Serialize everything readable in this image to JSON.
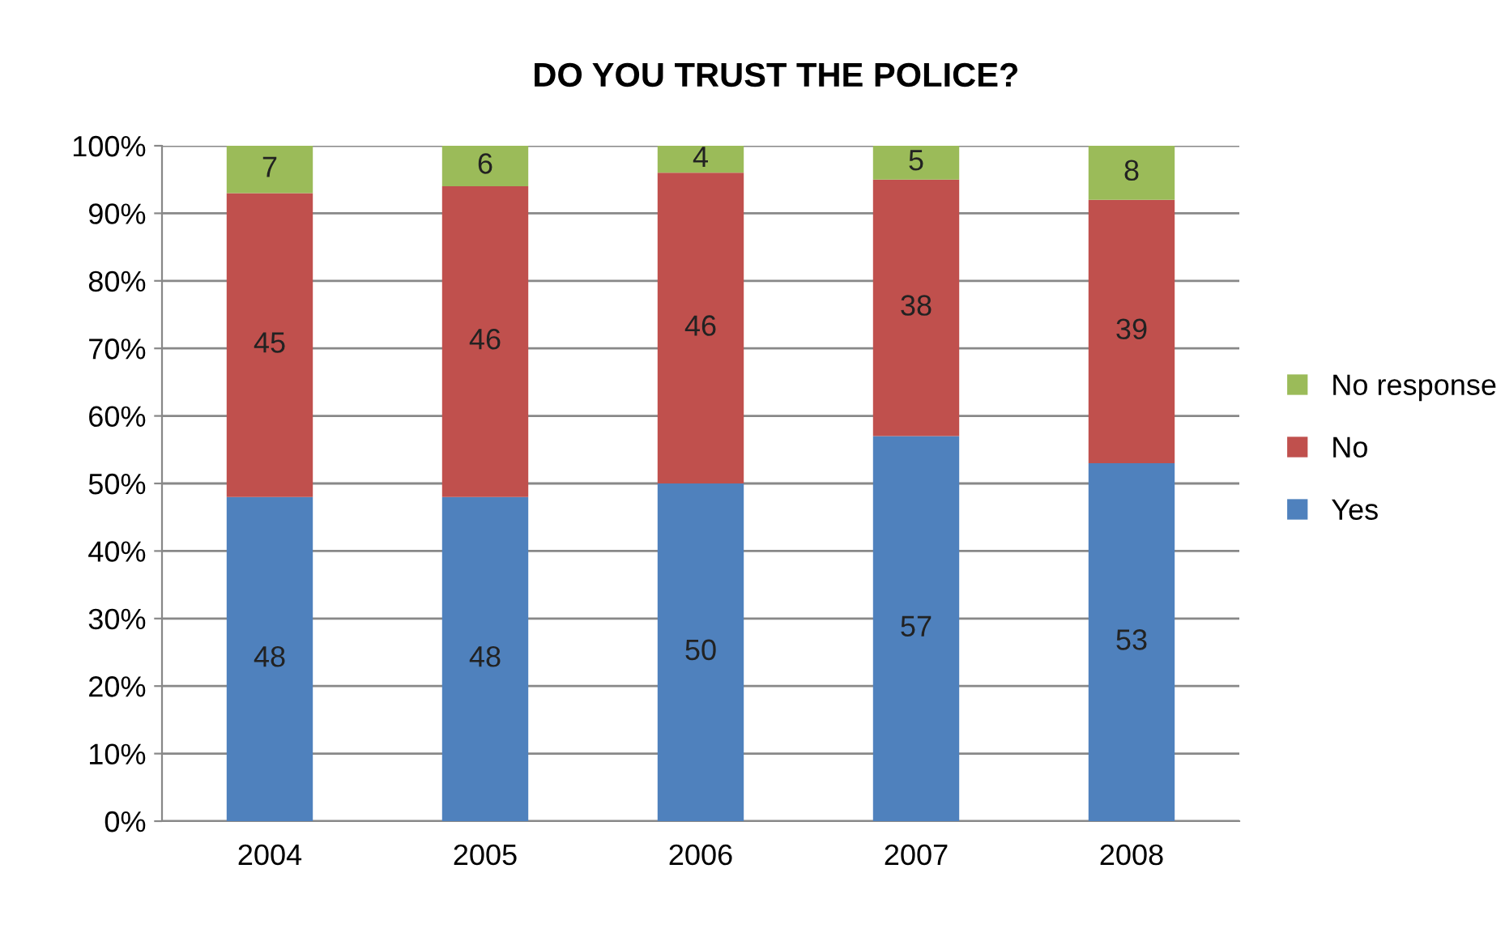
{
  "chart_data": {
    "type": "bar",
    "title": "DO YOU TRUST THE POLICE?",
    "stacked": true,
    "categories": [
      "2004",
      "2005",
      "2006",
      "2007",
      "2008"
    ],
    "series": [
      {
        "name": "Yes",
        "color": "#4f81bd",
        "values": [
          48,
          48,
          50,
          57,
          53
        ]
      },
      {
        "name": "No",
        "color": "#c0504d",
        "values": [
          45,
          46,
          46,
          38,
          39
        ]
      },
      {
        "name": "No response",
        "color": "#9bbb59",
        "values": [
          7,
          6,
          4,
          5,
          8
        ]
      }
    ],
    "ylim": [
      0,
      100
    ],
    "yticks": [
      {
        "value": 0,
        "label": "0%"
      },
      {
        "value": 10,
        "label": "10%"
      },
      {
        "value": 20,
        "label": "20%"
      },
      {
        "value": 30,
        "label": "30%"
      },
      {
        "value": 40,
        "label": "40%"
      },
      {
        "value": 50,
        "label": "50%"
      },
      {
        "value": 60,
        "label": "60%"
      },
      {
        "value": 70,
        "label": "70%"
      },
      {
        "value": 80,
        "label": "80%"
      },
      {
        "value": 90,
        "label": "90%"
      },
      {
        "value": 100,
        "label": "100%"
      }
    ],
    "grid": "y",
    "legend": "right",
    "data_labels": true
  }
}
